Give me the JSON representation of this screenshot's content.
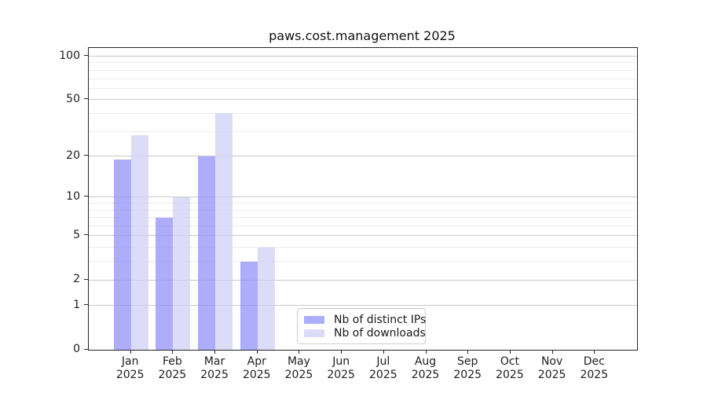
{
  "chart_data": {
    "type": "bar",
    "title": "paws.cost.management 2025",
    "x_axis": {
      "months": [
        "Jan",
        "Feb",
        "Mar",
        "Apr",
        "May",
        "Jun",
        "Jul",
        "Aug",
        "Sep",
        "Oct",
        "Nov",
        "Dec"
      ],
      "year": "2025"
    },
    "y_axis": {
      "scale": "log1p",
      "ticks": [
        100,
        50,
        20,
        10,
        5,
        2,
        1,
        0
      ],
      "minor_ticks": [
        90,
        80,
        70,
        60,
        40,
        30,
        9,
        8,
        7,
        6,
        4,
        3
      ],
      "max": 114,
      "min": 0
    },
    "series": [
      {
        "name": "Nb of distinct IPs",
        "color": "rgba(145,145,250,0.75)",
        "values": [
          19,
          7,
          20,
          3,
          null,
          null,
          null,
          null,
          null,
          null,
          null,
          null
        ]
      },
      {
        "name": "Nb of downloads",
        "color": "rgba(208,208,245,0.75)",
        "values": [
          28,
          10,
          40,
          4,
          null,
          null,
          null,
          null,
          null,
          null,
          null,
          null
        ]
      }
    ],
    "grid": {
      "on": true,
      "major_color": "#c9c9c9",
      "minor_color": "#ececec"
    },
    "legend": {
      "position": "lower-center"
    }
  }
}
